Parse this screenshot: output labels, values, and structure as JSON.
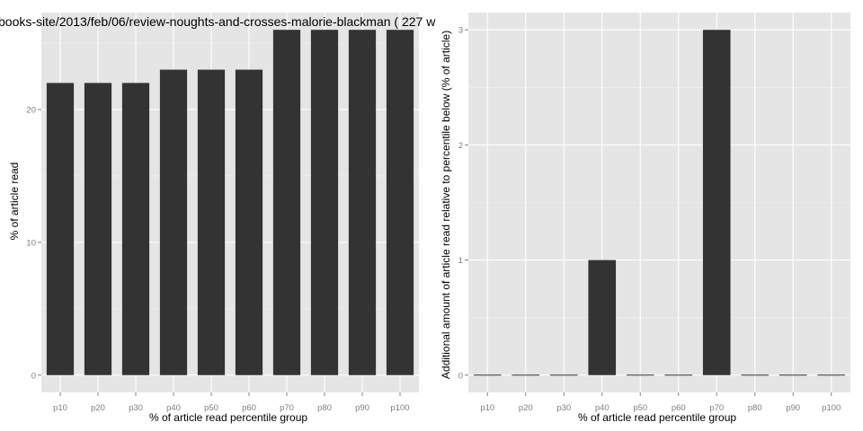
{
  "chart_data": [
    {
      "type": "bar",
      "title": "books-site/2013/feb/06/review-noughts-and-crosses-malorie-blackman ( 227 w",
      "xlabel": "% of article read percentile group",
      "ylabel": "% of article read",
      "categories": [
        "p10",
        "p20",
        "p30",
        "p40",
        "p50",
        "p60",
        "p70",
        "p80",
        "p90",
        "p100"
      ],
      "values": [
        22,
        22,
        22,
        23,
        23,
        23,
        26,
        26,
        26,
        26
      ],
      "ylim": [
        -1.3,
        27.3
      ],
      "yticks": [
        0,
        10,
        20
      ],
      "grid": true
    },
    {
      "type": "bar",
      "title": "",
      "xlabel": "% of article read percentile group",
      "ylabel": "Additional amount of article read relative to percentile below (% of article)",
      "categories": [
        "p10",
        "p20",
        "p30",
        "p40",
        "p50",
        "p60",
        "p70",
        "p80",
        "p90",
        "p100"
      ],
      "values": [
        0,
        0,
        0,
        1,
        0,
        0,
        3,
        0,
        0,
        0
      ],
      "ylim": [
        -0.15,
        3.15
      ],
      "yticks": [
        0,
        1,
        2,
        3
      ],
      "grid": true
    }
  ]
}
